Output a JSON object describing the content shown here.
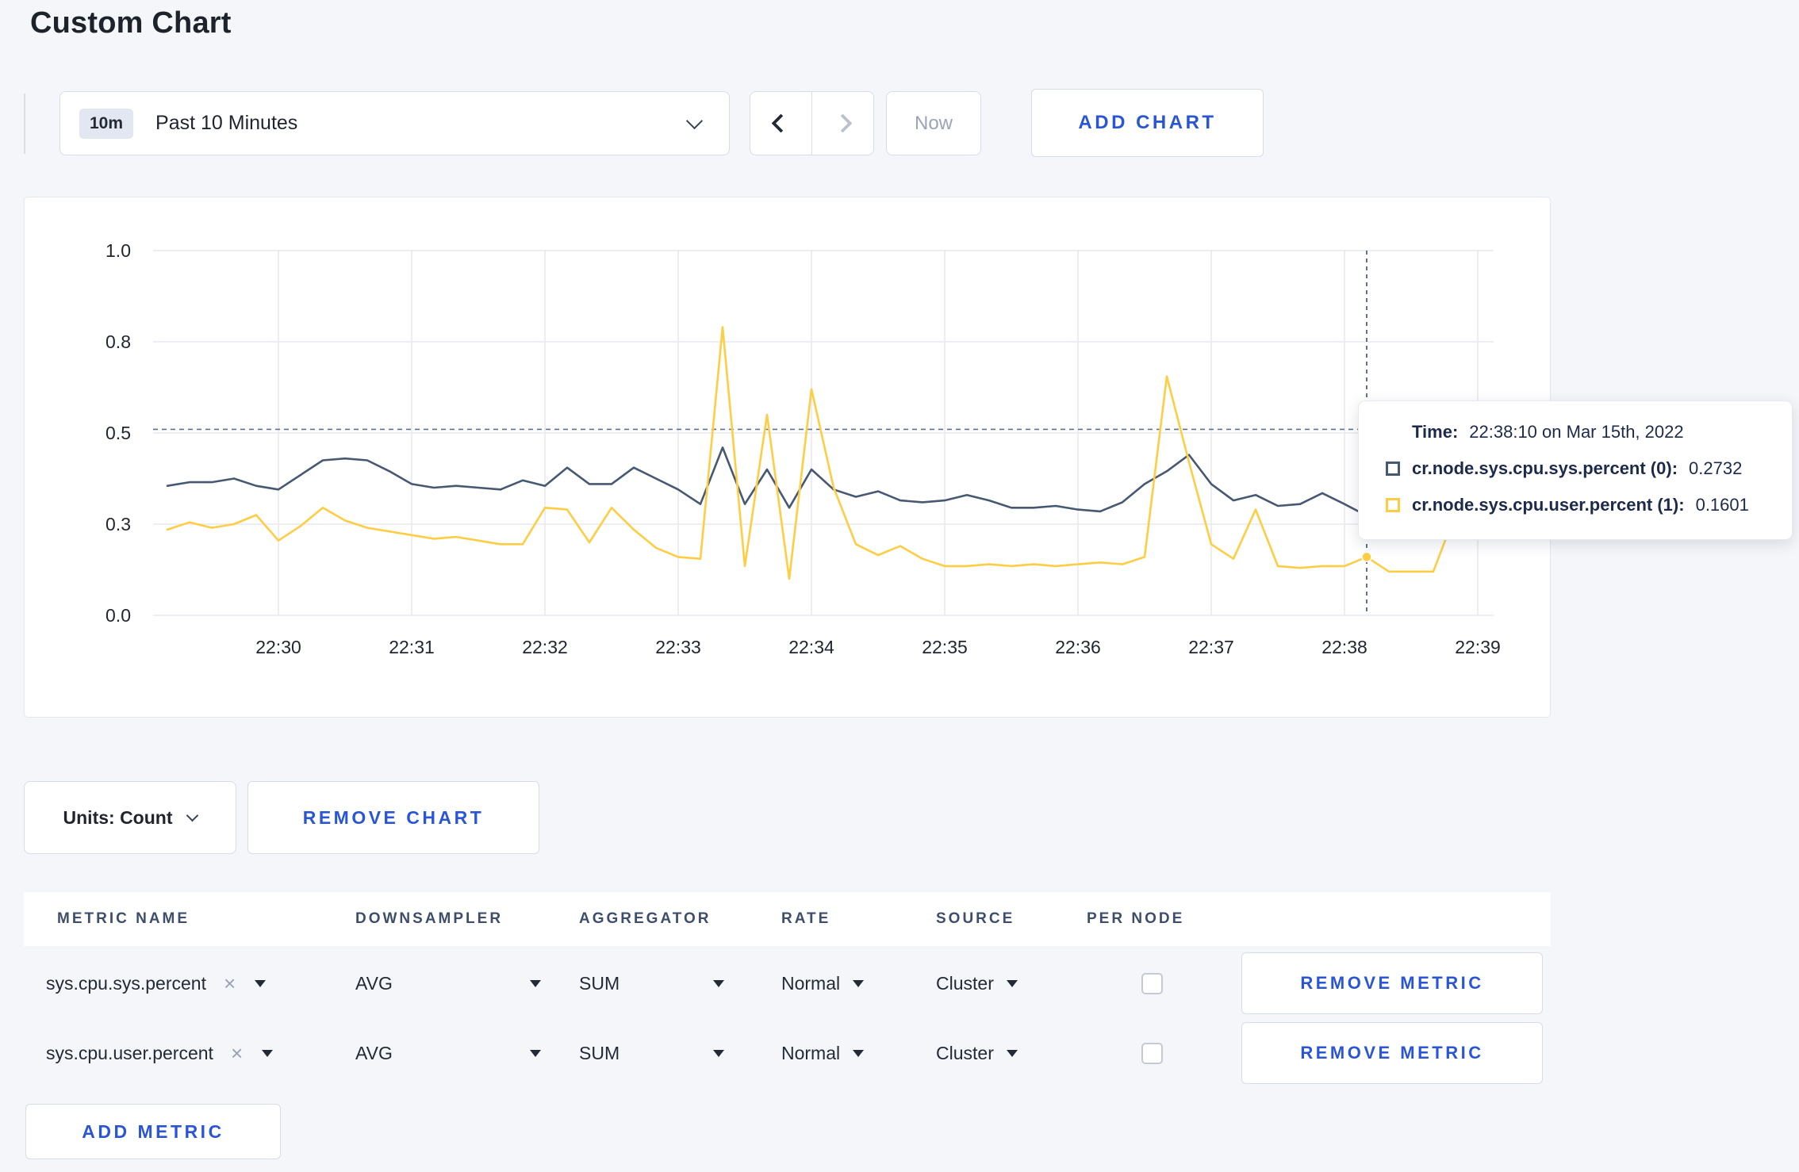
{
  "page": {
    "title": "Custom Chart"
  },
  "icons": {
    "clear": "×"
  },
  "toolbar": {
    "time_badge": "10m",
    "time_label": "Past 10 Minutes",
    "now_label": "Now",
    "add_chart_label": "ADD CHART"
  },
  "units_bar": {
    "units_label": "Units: Count",
    "remove_chart_label": "REMOVE CHART"
  },
  "tooltip": {
    "time_label": "Time:",
    "time_value": "22:38:10 on Mar 15th, 2022",
    "rows": [
      {
        "name": "cr.node.sys.cpu.sys.percent (0):",
        "value": "0.2732",
        "color": "#475872"
      },
      {
        "name": "cr.node.sys.cpu.user.percent (1):",
        "value": "0.1601",
        "color": "#ffcd44"
      }
    ]
  },
  "metrics_table": {
    "headers": [
      "METRIC NAME",
      "DOWNSAMPLER",
      "AGGREGATOR",
      "RATE",
      "SOURCE",
      "PER NODE"
    ],
    "rows": [
      {
        "metric": "sys.cpu.sys.percent",
        "downsampler": "AVG",
        "aggregator": "SUM",
        "rate": "Normal",
        "source": "Cluster",
        "per_node_checked": false,
        "remove_label": "REMOVE METRIC"
      },
      {
        "metric": "sys.cpu.user.percent",
        "downsampler": "AVG",
        "aggregator": "SUM",
        "rate": "Normal",
        "source": "Cluster",
        "per_node_checked": false,
        "remove_label": "REMOVE METRIC"
      }
    ],
    "add_metric_label": "ADD METRIC"
  },
  "chart_data": {
    "type": "line",
    "title": "",
    "xlabel": "",
    "ylabel": "",
    "ylim": [
      0,
      1
    ],
    "grid": true,
    "legend": "none",
    "y_ticks": [
      {
        "value": 0,
        "label": "0.0"
      },
      {
        "value": 0.25,
        "label": "0.3"
      },
      {
        "value": 0.5,
        "label": "0.5"
      },
      {
        "value": 0.75,
        "label": "0.8"
      },
      {
        "value": 1.0,
        "label": "1.0"
      }
    ],
    "x_ticks": [
      "22:30",
      "22:31",
      "22:32",
      "22:33",
      "22:34",
      "22:35",
      "22:36",
      "22:37",
      "22:38",
      "22:39"
    ],
    "x_start": "22:29:10",
    "x_step_seconds": 10,
    "series": [
      {
        "name": "cr.node.sys.cpu.sys.percent",
        "color": "#475872",
        "values": [
          0.355,
          0.365,
          0.365,
          0.375,
          0.355,
          0.345,
          0.385,
          0.425,
          0.43,
          0.425,
          0.395,
          0.36,
          0.35,
          0.355,
          0.35,
          0.345,
          0.37,
          0.355,
          0.405,
          0.36,
          0.36,
          0.405,
          0.375,
          0.345,
          0.305,
          0.46,
          0.305,
          0.4,
          0.295,
          0.4,
          0.345,
          0.325,
          0.34,
          0.315,
          0.31,
          0.315,
          0.33,
          0.315,
          0.295,
          0.295,
          0.3,
          0.29,
          0.285,
          0.31,
          0.36,
          0.395,
          0.44,
          0.36,
          0.315,
          0.33,
          0.3,
          0.305,
          0.335,
          0.305,
          0.2732,
          0.3,
          0.295,
          0.3,
          0.295,
          0.31,
          0.3
        ]
      },
      {
        "name": "cr.node.sys.cpu.user.percent",
        "color": "#ffcd44",
        "values": [
          0.235,
          0.255,
          0.24,
          0.25,
          0.275,
          0.205,
          0.245,
          0.295,
          0.26,
          0.24,
          0.23,
          0.22,
          0.21,
          0.215,
          0.205,
          0.195,
          0.195,
          0.295,
          0.29,
          0.2,
          0.295,
          0.235,
          0.185,
          0.16,
          0.155,
          0.79,
          0.135,
          0.55,
          0.1,
          0.62,
          0.35,
          0.195,
          0.165,
          0.19,
          0.155,
          0.135,
          0.135,
          0.14,
          0.135,
          0.14,
          0.135,
          0.14,
          0.145,
          0.14,
          0.16,
          0.655,
          0.42,
          0.195,
          0.155,
          0.29,
          0.135,
          0.13,
          0.135,
          0.135,
          0.1601,
          0.12,
          0.12,
          0.12,
          0.28,
          0.275,
          0.22
        ]
      }
    ],
    "crosshair": {
      "time": "22:38:10",
      "x_index": 54,
      "hline_value": 0.51,
      "points": [
        {
          "series": 0,
          "value": 0.2732
        },
        {
          "series": 1,
          "value": 0.1601
        }
      ]
    }
  }
}
